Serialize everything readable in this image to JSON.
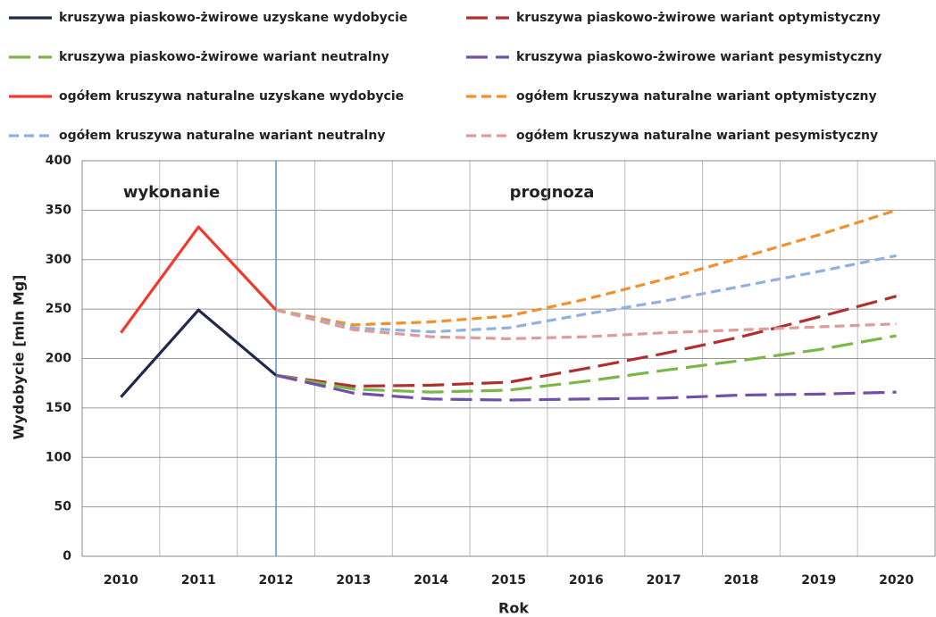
{
  "chart_data": {
    "type": "line",
    "xlabel": "Rok",
    "ylabel": "Wydobycie [mln Mg]",
    "annotations": [
      "wykonanie",
      "prognoza"
    ],
    "vline": "2012",
    "categories": [
      "2010",
      "2011",
      "2012",
      "2013",
      "2014",
      "2015",
      "2016",
      "2017",
      "2018",
      "2019",
      "2020"
    ],
    "ylim": [
      0,
      400
    ],
    "yticks": [
      0,
      50,
      100,
      150,
      200,
      250,
      300,
      350,
      400
    ],
    "grid": true,
    "series": [
      {
        "name": "kruszywa piaskowo-żwirowe uzyskane wydobycie",
        "color": "#1f2a4a",
        "line_style": "solid",
        "values": [
          161,
          249,
          183,
          null,
          null,
          null,
          null,
          null,
          null,
          null,
          null
        ]
      },
      {
        "name": "kruszywa piaskowo-żwirowe wariant optymistyczny",
        "color": "#b03030",
        "line_style": "long-dash",
        "values": [
          null,
          null,
          183,
          172,
          173,
          176,
          190,
          205,
          222,
          242,
          263
        ]
      },
      {
        "name": "kruszywa piaskowo-żwirowe wariant neutralny",
        "color": "#7ab648",
        "line_style": "long-dash",
        "values": [
          null,
          null,
          183,
          169,
          166,
          168,
          177,
          188,
          198,
          209,
          223
        ]
      },
      {
        "name": "kruszywa piaskowo-żwirowe wariant pesymistyczny",
        "color": "#7050a8",
        "line_style": "long-dash",
        "values": [
          null,
          null,
          183,
          165,
          159,
          158,
          159,
          160,
          163,
          164,
          166
        ]
      },
      {
        "name": "ogółem kruszywa naturalne uzyskane wydobycie",
        "color": "#f03a2e",
        "line_style": "solid",
        "values": [
          226,
          333,
          249,
          null,
          null,
          null,
          null,
          null,
          null,
          null,
          null
        ]
      },
      {
        "name": "ogółem kruszywa naturalne wariant optymistyczny",
        "color": "#f0902e",
        "line_style": "dash",
        "values": [
          null,
          null,
          249,
          234,
          237,
          243,
          260,
          280,
          302,
          325,
          350
        ]
      },
      {
        "name": "ogółem kruszywa naturalne wariant neutralny",
        "color": "#8fb0e0",
        "line_style": "dash",
        "values": [
          null,
          null,
          249,
          231,
          227,
          231,
          245,
          258,
          273,
          288,
          304
        ]
      },
      {
        "name": "ogółem kruszywa naturalne wariant pesymistyczny",
        "color": "#e09a9a",
        "line_style": "dash",
        "values": [
          null,
          null,
          249,
          229,
          222,
          220,
          222,
          226,
          229,
          232,
          235
        ]
      }
    ]
  }
}
